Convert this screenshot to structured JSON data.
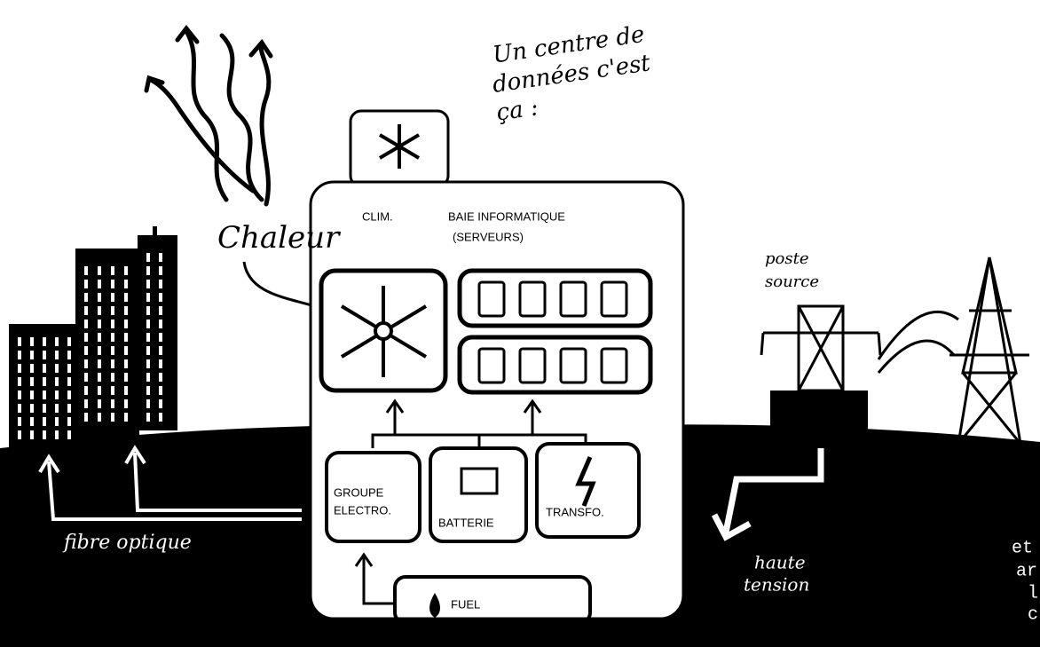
{
  "title": [
    "Un centre de",
    "données c'est",
    "ça :"
  ],
  "heat": "Chaleur",
  "clim": "CLIM.",
  "rack": {
    "title": "BAIE INFORMATIQUE",
    "subtitle": "(SERVEURS)"
  },
  "substation": [
    "poste",
    "source"
  ],
  "generator": [
    "GROUPE",
    "ELECTRO."
  ],
  "battery": "BATTERIE",
  "transformer": "TRANSFO.",
  "fuel": "FUEL",
  "fiber": "fibre optique",
  "high_voltage": [
    "haute",
    "tension"
  ],
  "cut_text": [
    "et",
    "ar",
    "l",
    "c"
  ]
}
